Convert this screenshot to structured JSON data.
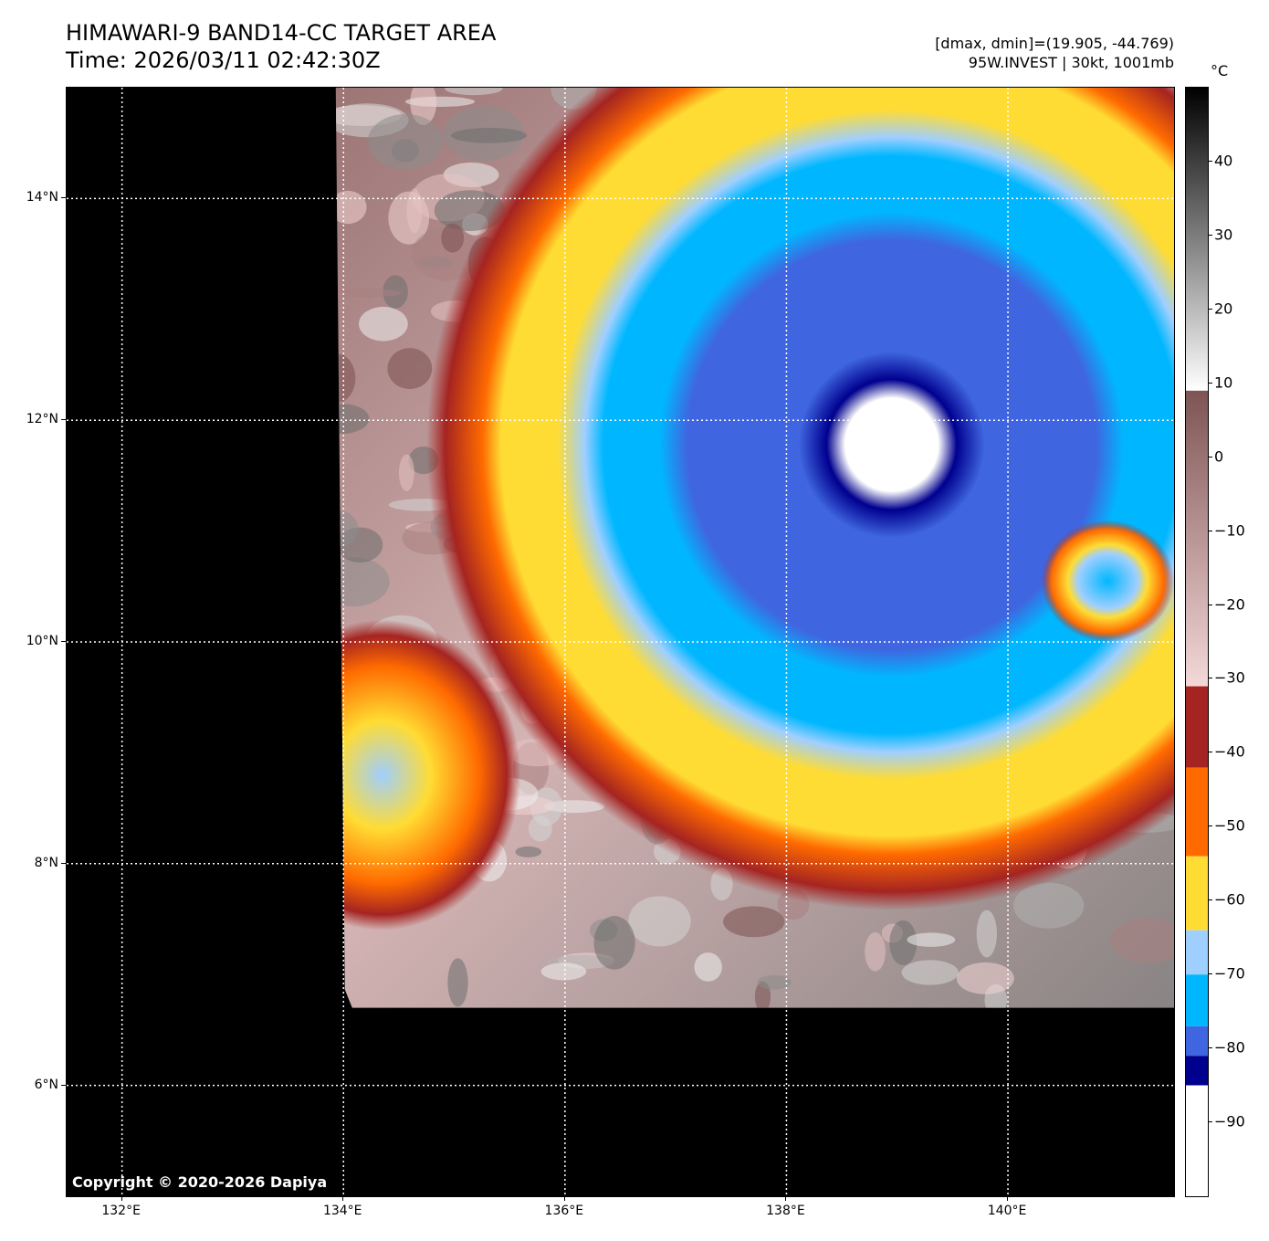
{
  "title": {
    "line1": "HIMAWARI-9 BAND14-CC TARGET AREA",
    "line2": "Time: 2026/03/11 02:42:30Z"
  },
  "info": {
    "line1": "[dmax, dmin]=(19.905, -44.769)",
    "line2": "95W.INVEST | 30kt, 1001mb"
  },
  "map": {
    "lon_range": [
      131.5,
      141.5
    ],
    "lat_range": [
      5.0,
      15.0
    ],
    "lat_ticks": [
      {
        "value": 14,
        "label": "14°N"
      },
      {
        "value": 12,
        "label": "12°N"
      },
      {
        "value": 10,
        "label": "10°N"
      },
      {
        "value": 8,
        "label": "8°N"
      },
      {
        "value": 6,
        "label": "6°N"
      }
    ],
    "lon_ticks": [
      {
        "value": 132,
        "label": "132°E"
      },
      {
        "value": 134,
        "label": "134°E"
      },
      {
        "value": 136,
        "label": "136°E"
      },
      {
        "value": 138,
        "label": "138°E"
      },
      {
        "value": 140,
        "label": "140°E"
      }
    ],
    "grid": true,
    "data_extent": {
      "lon_west": 133.93,
      "lon_east": 141.5,
      "lat_south": 6.7,
      "lat_north": 15.0
    },
    "storm_center": {
      "lon": 138.95,
      "lat": 11.45
    },
    "copyright": "Copyright © 2020-2026 Dapiya"
  },
  "colorbar": {
    "unit": "°C",
    "range": [
      -100,
      50
    ],
    "labels": [
      {
        "value": 40,
        "label": "40"
      },
      {
        "value": 30,
        "label": "30"
      },
      {
        "value": 20,
        "label": "20"
      },
      {
        "value": 10,
        "label": "10"
      },
      {
        "value": 0,
        "label": "0"
      },
      {
        "value": -10,
        "label": "−10"
      },
      {
        "value": -20,
        "label": "−20"
      },
      {
        "value": -30,
        "label": "−30"
      },
      {
        "value": -40,
        "label": "−40"
      },
      {
        "value": -50,
        "label": "−50"
      },
      {
        "value": -60,
        "label": "−60"
      },
      {
        "value": -70,
        "label": "−70"
      },
      {
        "value": -80,
        "label": "−80"
      },
      {
        "value": -90,
        "label": "−90"
      }
    ],
    "bands": [
      {
        "from": 9,
        "to": 50,
        "type": "gradient",
        "colors": [
          "#ffffff",
          "#000000"
        ]
      },
      {
        "from": -31,
        "to": 9,
        "type": "gradient",
        "colors": [
          "#f4d8d8",
          "#7e5454"
        ]
      },
      {
        "from": -42,
        "to": -31,
        "color": "#a52421"
      },
      {
        "from": -54,
        "to": -42,
        "color": "#ff6a00"
      },
      {
        "from": -64,
        "to": -54,
        "color": "#ffdc33"
      },
      {
        "from": -70,
        "to": -64,
        "color": "#9fcfff"
      },
      {
        "from": -77,
        "to": -70,
        "color": "#00b7ff"
      },
      {
        "from": -81,
        "to": -77,
        "color": "#3f66e0"
      },
      {
        "from": -85,
        "to": -81,
        "color": "#00008f"
      },
      {
        "from": -100,
        "to": -85,
        "color": "#ffffff"
      }
    ]
  }
}
